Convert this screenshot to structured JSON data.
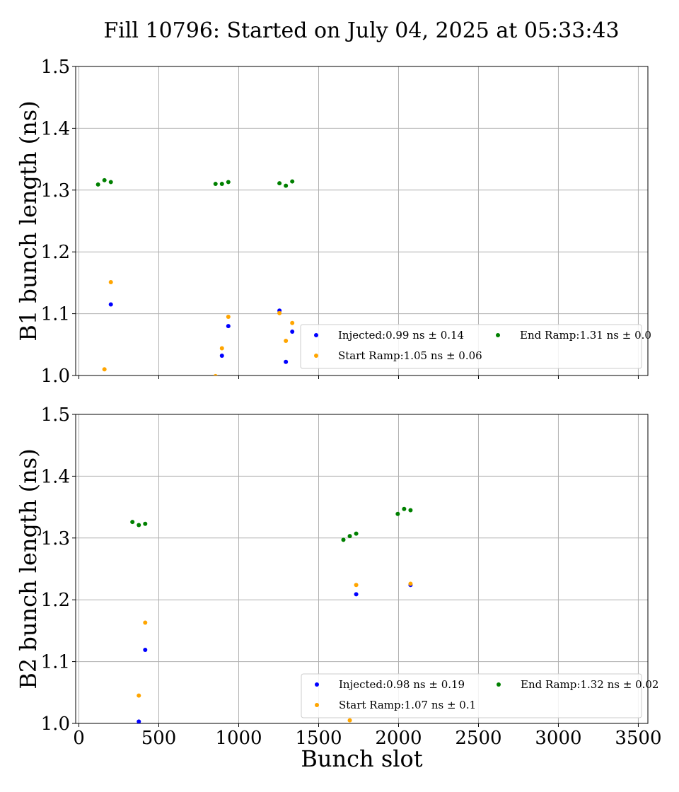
{
  "figure_title": "Fill 10796: Started on July 04, 2025 at 05:33:43",
  "colors": {
    "injected": "#0000ff",
    "start_ramp": "#ffa500",
    "end_ramp": "#008000",
    "grid": "#b0b0b0"
  },
  "chart_data": [
    {
      "type": "scatter",
      "panel": "B1",
      "ylabel": "B1 bunch length (ns)",
      "xlabel": "",
      "xlim": [
        -20,
        3560
      ],
      "ylim": [
        1.0,
        1.5
      ],
      "xticks": [
        0,
        500,
        1000,
        1500,
        2000,
        2500,
        3000,
        3500
      ],
      "yticks": [
        1.0,
        1.1,
        1.2,
        1.3,
        1.4,
        1.5
      ],
      "xtick_labels_shown": false,
      "grid": true,
      "legend_position": "lower-right",
      "series": [
        {
          "name": "Injected",
          "legend": "Injected:0.99 ns ± 0.14",
          "color": "#0000ff",
          "x": [
            200,
            895,
            935,
            1255,
            1295,
            1335
          ],
          "y": [
            1.115,
            1.032,
            1.08,
            1.105,
            1.022,
            1.071
          ]
        },
        {
          "name": "Start Ramp",
          "legend": "Start Ramp:1.05 ns ± 0.06",
          "color": "#ffa500",
          "x": [
            160,
            200,
            855,
            895,
            935,
            1255,
            1295,
            1335
          ],
          "y": [
            1.01,
            1.151,
            0.999,
            1.044,
            1.095,
            1.101,
            1.056,
            1.085
          ]
        },
        {
          "name": "End Ramp",
          "legend": "End Ramp:1.31 ns ± 0.0",
          "color": "#008000",
          "x": [
            120,
            160,
            200,
            855,
            895,
            935,
            1255,
            1295,
            1335
          ],
          "y": [
            1.309,
            1.316,
            1.313,
            1.31,
            1.31,
            1.313,
            1.311,
            1.307,
            1.314
          ]
        }
      ]
    },
    {
      "type": "scatter",
      "panel": "B2",
      "ylabel": "B2 bunch length (ns)",
      "xlabel": "Bunch slot",
      "xlim": [
        -20,
        3560
      ],
      "ylim": [
        1.0,
        1.5
      ],
      "xticks": [
        0,
        500,
        1000,
        1500,
        2000,
        2500,
        3000,
        3500
      ],
      "yticks": [
        1.0,
        1.1,
        1.2,
        1.3,
        1.4,
        1.5
      ],
      "xtick_labels_shown": true,
      "grid": true,
      "legend_position": "lower-right",
      "series": [
        {
          "name": "Injected",
          "legend": "Injected:0.98 ns ± 0.19",
          "color": "#0000ff",
          "x": [
            375,
            415,
            1735,
            2075
          ],
          "y": [
            1.003,
            1.119,
            1.209,
            1.224
          ]
        },
        {
          "name": "Start Ramp",
          "legend": "Start Ramp:1.07 ns ± 0.1",
          "color": "#ffa500",
          "x": [
            375,
            415,
            1695,
            1735,
            2075
          ],
          "y": [
            1.045,
            1.163,
            1.005,
            1.224,
            1.226
          ]
        },
        {
          "name": "End Ramp",
          "legend": "End Ramp:1.32 ns ± 0.02",
          "color": "#008000",
          "x": [
            335,
            375,
            415,
            1655,
            1695,
            1735,
            1995,
            2035,
            2075
          ],
          "y": [
            1.326,
            1.321,
            1.323,
            1.297,
            1.303,
            1.307,
            1.339,
            1.347,
            1.345
          ]
        }
      ]
    }
  ]
}
